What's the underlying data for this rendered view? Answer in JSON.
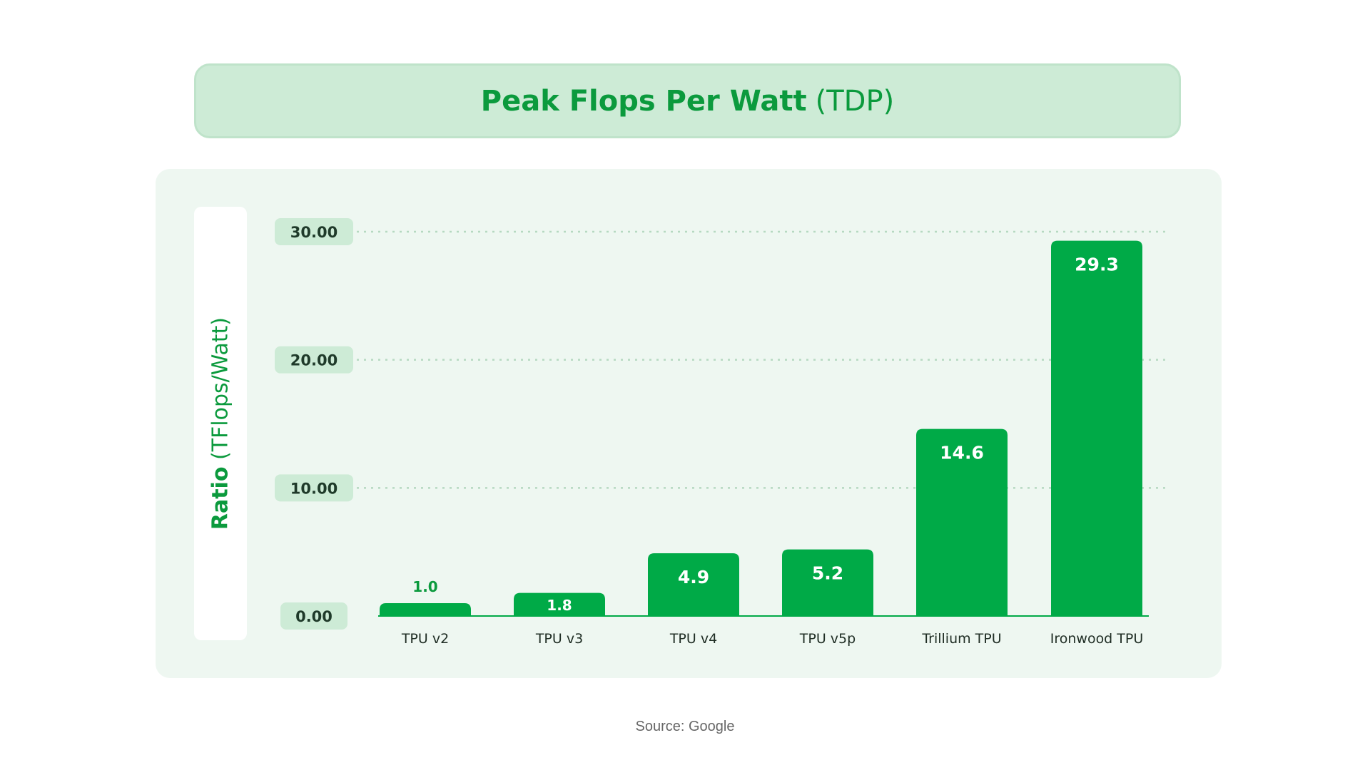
{
  "title": {
    "bold": "Peak Flops Per Watt",
    "light": "(TDP)"
  },
  "source": "Source: Google",
  "colors": {
    "bar": "#00aa47",
    "accent": "#0b9a3d",
    "tick_pill": "#cdebd6",
    "panel": "#eef7f1"
  },
  "chart_data": {
    "type": "bar",
    "title": "Peak Flops Per Watt (TDP)",
    "ylabel_bold": "Ratio",
    "ylabel_light": "(TFlops/Watt)",
    "categories": [
      "TPU v2",
      "TPU v3",
      "TPU v4",
      "TPU v5p",
      "Trillium TPU",
      "Ironwood TPU"
    ],
    "values": [
      1.0,
      1.8,
      4.9,
      5.2,
      14.6,
      29.3
    ],
    "value_labels": [
      "1.0",
      "1.8",
      "4.9",
      "5.2",
      "14.6",
      "29.3"
    ],
    "yticks": [
      0,
      10,
      20,
      30
    ],
    "ytick_labels": [
      "0.00",
      "10.00",
      "20.00",
      "30.00"
    ],
    "ylim": [
      0,
      30
    ],
    "grid": true
  }
}
